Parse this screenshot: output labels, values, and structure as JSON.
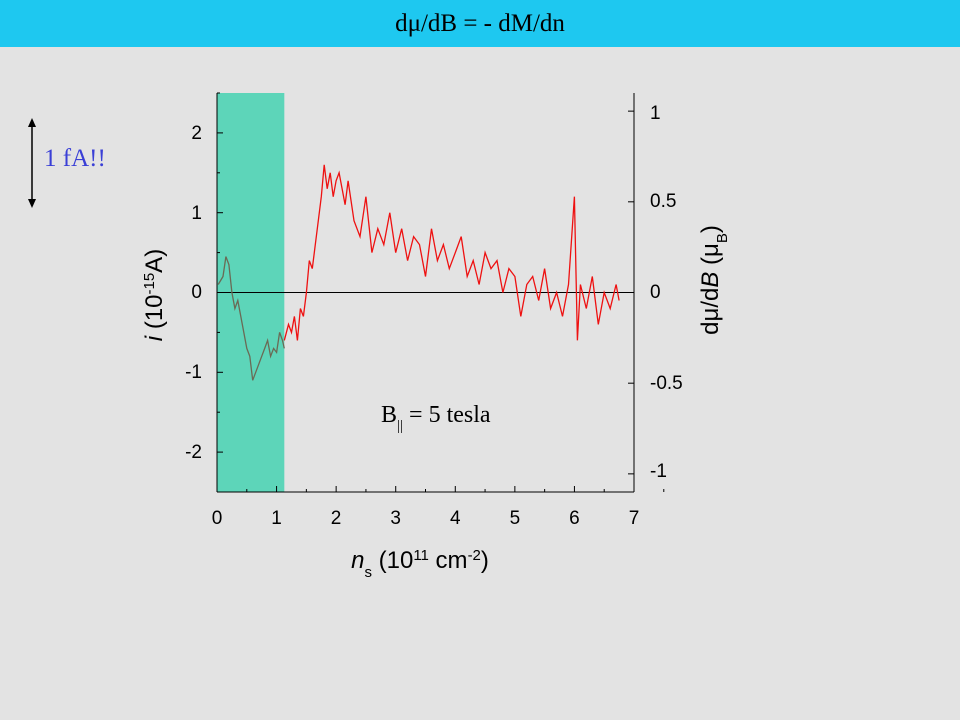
{
  "header": {
    "title": "dμ/dB = - dM/dn"
  },
  "scale_annotation": {
    "label": "1 fA!!"
  },
  "chart_data": {
    "type": "line",
    "xlabel": "n_s (10^11 cm^-2)",
    "ylabel_left": "i (10^-15 A)",
    "ylabel_right": "dμ/dB (μ_B)",
    "annotation": "B|| = 5 tesla",
    "xlim": [
      0,
      7
    ],
    "ylim": [
      -2.5,
      2.5
    ],
    "ylim_right": [
      -1.1,
      1.1
    ],
    "x_ticks": [
      "0",
      "1",
      "2",
      "3",
      "4",
      "5",
      "6",
      "7"
    ],
    "y_ticks_left": [
      "2",
      "1",
      "0",
      "-1",
      "-2"
    ],
    "y_ticks_right": [
      "1",
      "0.5",
      "0",
      "-0.5",
      "-1"
    ],
    "shaded_region": {
      "x": [
        0,
        1.13
      ],
      "color": "#5dd5b9"
    },
    "colors": {
      "shaded_trace": "#6a6a55",
      "trace": "#ee1111"
    },
    "series": [
      {
        "x": [
          0.02,
          0.1,
          0.15,
          0.2,
          0.25,
          0.3,
          0.35,
          0.4,
          0.45,
          0.5,
          0.55,
          0.6,
          0.65,
          0.7,
          0.75,
          0.8,
          0.85,
          0.9,
          0.95,
          1.0,
          1.05,
          1.1,
          1.13
        ],
        "values": [
          0.1,
          0.2,
          0.45,
          0.35,
          0.0,
          -0.2,
          -0.1,
          -0.3,
          -0.5,
          -0.7,
          -0.8,
          -1.1,
          -1.0,
          -0.9,
          -0.8,
          -0.7,
          -0.6,
          -0.8,
          -0.7,
          -0.75,
          -0.5,
          -0.6,
          -0.7
        ]
      },
      {
        "x": [
          1.13,
          1.2,
          1.25,
          1.3,
          1.35,
          1.4,
          1.45,
          1.5,
          1.55,
          1.6,
          1.65,
          1.7,
          1.75,
          1.8,
          1.85,
          1.9,
          1.95,
          2.0,
          2.05,
          2.1,
          2.15,
          2.2,
          2.3,
          2.4,
          2.5,
          2.6,
          2.7,
          2.8,
          2.9,
          3.0,
          3.1,
          3.2,
          3.3,
          3.4,
          3.5,
          3.6,
          3.7,
          3.8,
          3.9,
          4.0,
          4.1,
          4.2,
          4.3,
          4.4,
          4.5,
          4.6,
          4.7,
          4.8,
          4.9,
          5.0,
          5.1,
          5.2,
          5.3,
          5.4,
          5.5,
          5.6,
          5.7,
          5.8,
          5.9,
          6.0,
          6.05,
          6.1,
          6.2,
          6.3,
          6.4,
          6.5,
          6.6,
          6.7,
          6.75
        ],
        "values": [
          -0.6,
          -0.4,
          -0.5,
          -0.3,
          -0.6,
          -0.2,
          -0.3,
          0.0,
          0.4,
          0.3,
          0.6,
          0.9,
          1.2,
          1.6,
          1.3,
          1.5,
          1.2,
          1.4,
          1.5,
          1.3,
          1.1,
          1.4,
          0.9,
          0.7,
          1.2,
          0.5,
          0.8,
          0.6,
          1.0,
          0.5,
          0.8,
          0.4,
          0.7,
          0.6,
          0.2,
          0.8,
          0.4,
          0.6,
          0.3,
          0.5,
          0.7,
          0.2,
          0.4,
          0.1,
          0.5,
          0.3,
          0.4,
          0.0,
          0.3,
          0.2,
          -0.3,
          0.1,
          0.2,
          -0.1,
          0.3,
          -0.2,
          0.0,
          -0.3,
          0.1,
          1.2,
          -0.6,
          0.1,
          -0.2,
          0.2,
          -0.4,
          0.0,
          -0.2,
          0.1,
          -0.1
        ]
      }
    ]
  }
}
